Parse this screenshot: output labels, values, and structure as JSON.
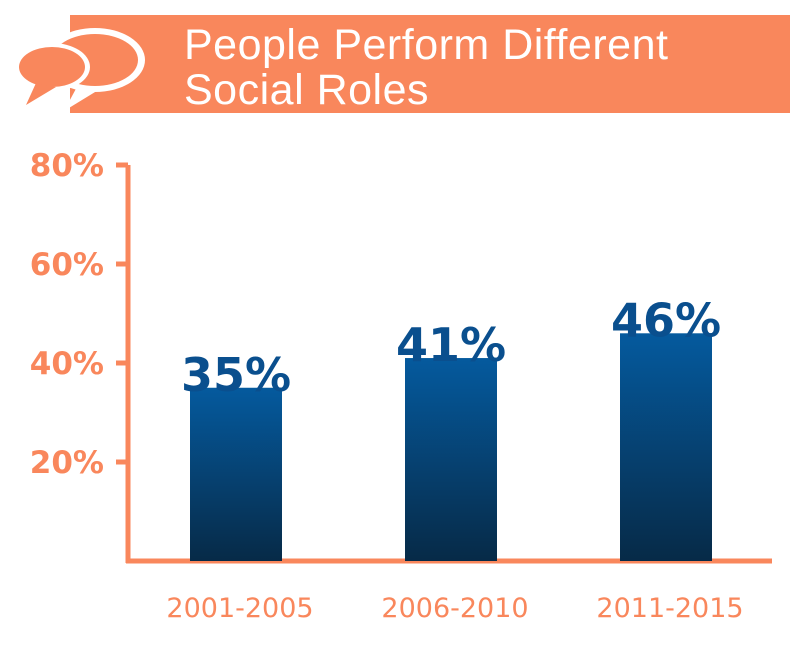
{
  "header": {
    "title_line1": "People Perform Different",
    "title_line2": "Social Roles",
    "icon": "speech-bubbles-icon"
  },
  "colors": {
    "accent": "#f9875c",
    "bar_top": "#055a9e",
    "bar_bottom": "#062a47",
    "data_label": "#0a4f8e"
  },
  "chart_data": {
    "type": "bar",
    "title": "People Perform Different Social Roles",
    "categories": [
      "2001-2005",
      "2006-2010",
      "2011-2015"
    ],
    "values": [
      35,
      41,
      46
    ],
    "data_labels": [
      "35%",
      "41%",
      "46%"
    ],
    "yticks": [
      20,
      40,
      60,
      80
    ],
    "ytick_labels": [
      "20%",
      "40%",
      "60%",
      "80%"
    ],
    "ylim": [
      0,
      80
    ],
    "xlabel": "",
    "ylabel": "",
    "grid": false,
    "legend": "none"
  }
}
